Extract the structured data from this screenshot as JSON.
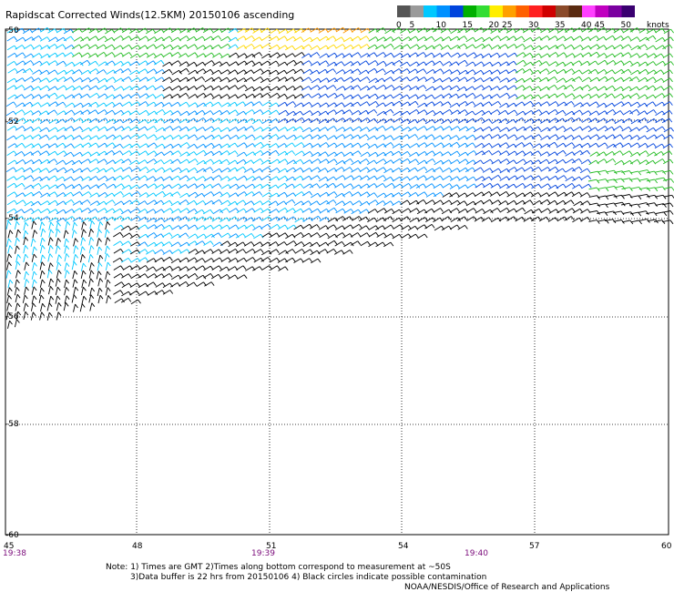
{
  "title": "Rapidscat Corrected Winds(12.5KM) 20150106 ascending",
  "legend": {
    "units": "knots",
    "bins": [
      {
        "label": "0",
        "color": "#555555"
      },
      {
        "label": "5",
        "color": "#9a9a9a"
      },
      {
        "label": "",
        "color": "#00c8ff"
      },
      {
        "label": "10",
        "color": "#0090ff"
      },
      {
        "label": "",
        "color": "#0044dd"
      },
      {
        "label": "15",
        "color": "#00b000"
      },
      {
        "label": "",
        "color": "#33dd33"
      },
      {
        "label": "20",
        "color": "#ffee00"
      },
      {
        "label": "25",
        "color": "#ffa000"
      },
      {
        "label": "",
        "color": "#ff6000"
      },
      {
        "label": "30",
        "color": "#ff2020"
      },
      {
        "label": "",
        "color": "#d00000"
      },
      {
        "label": "35",
        "color": "#8b4a2a"
      },
      {
        "label": "",
        "color": "#5a2a10"
      },
      {
        "label": "40",
        "color": "#ff40ff"
      },
      {
        "label": "45",
        "color": "#c000c0"
      },
      {
        "label": "",
        "color": "#7a00a0"
      },
      {
        "label": "50",
        "color": "#3a0070"
      }
    ]
  },
  "axes": {
    "lat_labels": [
      "-50",
      "-52",
      "-54",
      "-56",
      "-58",
      "-60"
    ],
    "lon_labels": [
      "45",
      "48",
      "51",
      "54",
      "57",
      "60"
    ],
    "time_labels": [
      "19:38",
      "19:39",
      "19:40"
    ]
  },
  "notes": {
    "line1": "Note: 1) Times are GMT 2)Times along bottom correspond to measurement at ~50S",
    "line2": "3)Data buffer is 22 hrs from 20150106 4) Black circles indicate possible contamination",
    "credit": "NOAA/NESDIS/Office of Research and Applications"
  },
  "colors": {
    "black": "#000000",
    "cyan": "#00c8ff",
    "light_blue": "#0090ff",
    "blue": "#0044dd",
    "green": "#22bb22",
    "yellow": "#ffd800",
    "orange": "#ff9900"
  }
}
